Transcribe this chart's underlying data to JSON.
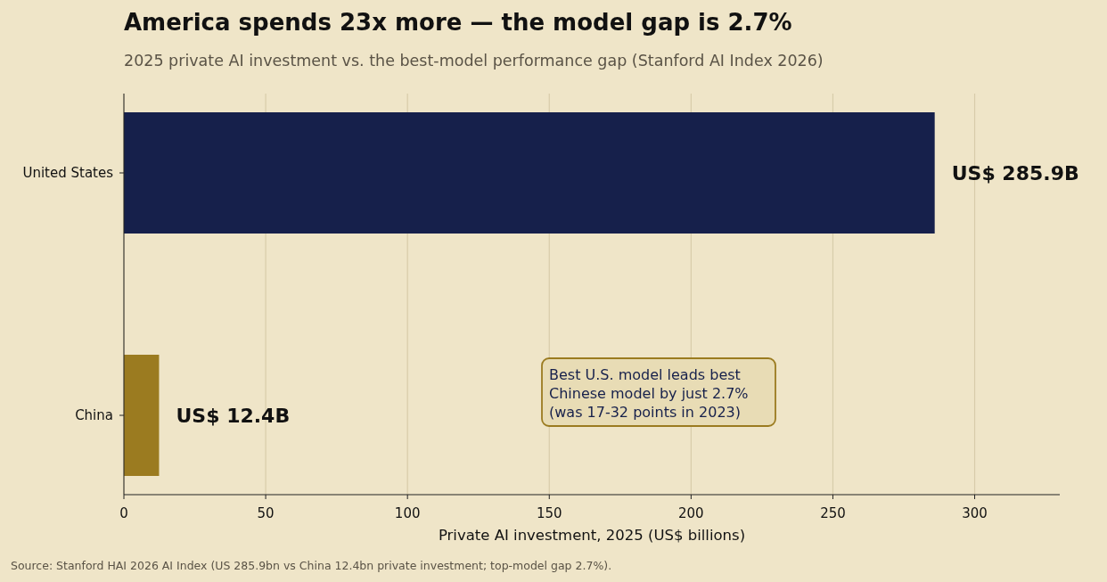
{
  "chart_data": {
    "type": "bar",
    "orientation": "horizontal",
    "title": "America spends 23x more — the model gap is 2.7%",
    "subtitle": "2025 private AI investment vs. the best-model performance gap (Stanford AI Index 2026)",
    "xlabel": "Private AI investment, 2025 (US$ billions)",
    "categories": [
      "United States",
      "China"
    ],
    "values": [
      285.9,
      12.4
    ],
    "colors": [
      "#16204b",
      "#9b7b20"
    ],
    "value_labels": [
      "US$ 285.9B",
      "US$ 12.4B"
    ],
    "xlim": [
      0,
      330
    ],
    "xticks": [
      0,
      50,
      100,
      150,
      200,
      250,
      300
    ],
    "grid": "x",
    "annotations": [
      "Best U.S. model leads best\nChinese model by just 2.7%\n(was 17-32 points in 2023)",
      "Source: Stanford HAI 2026 AI Index (US 285.9bn vs China 12.4bn private investment; top-model gap 2.7%)."
    ]
  }
}
